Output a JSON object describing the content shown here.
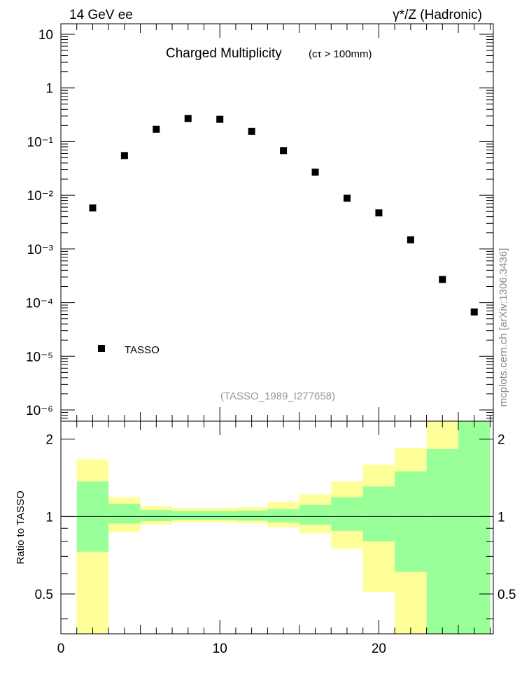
{
  "header": {
    "left": "14 GeV ee",
    "right": "γ*/Z (Hadronic)"
  },
  "side_label": "mcplots.cern.ch [arXiv:1306.3436]",
  "chart_data": [
    {
      "type": "scatter",
      "title": "Charged Multiplicity",
      "subtitle": "(cτ > 100mm)",
      "watermark": "(TASSO_1989_I277658)",
      "yscale": "log",
      "ylim": [
        5e-07,
        20
      ],
      "xlim": [
        0,
        27.2
      ],
      "y_tick_labels": [
        "10",
        "1",
        "10⁻¹",
        "10⁻²",
        "10⁻³",
        "10⁻⁴",
        "10⁻⁵",
        "10⁻⁶"
      ],
      "legend": {
        "position": "bottom-left",
        "entries": [
          "TASSO"
        ]
      },
      "series": [
        {
          "name": "TASSO",
          "marker": "square",
          "color": "#000000",
          "x": [
            2,
            4,
            6,
            8,
            10,
            12,
            14,
            16,
            18,
            20,
            22,
            24,
            26
          ],
          "y": [
            0.0058,
            0.055,
            0.17,
            0.27,
            0.26,
            0.155,
            0.068,
            0.027,
            0.0088,
            0.0047,
            0.00148,
            0.00027,
            6.7e-05
          ]
        }
      ]
    },
    {
      "type": "area",
      "ylabel": "Ratio to TASSO",
      "ylim": [
        0.35,
        2.35
      ],
      "xlim": [
        0,
        27.2
      ],
      "x_ticks": [
        0,
        10,
        20
      ],
      "y_ticks": [
        0.5,
        1,
        2
      ],
      "reference_line": 1,
      "bands": [
        {
          "color": "#ffff99",
          "bins": [
            {
              "lo": 1,
              "hi": 3,
              "low": 0.33,
              "high": 1.67
            },
            {
              "lo": 3,
              "hi": 5,
              "low": 0.87,
              "high": 1.19
            },
            {
              "lo": 5,
              "hi": 7,
              "low": 0.93,
              "high": 1.1
            },
            {
              "lo": 7,
              "hi": 9,
              "low": 0.95,
              "high": 1.08
            },
            {
              "lo": 9,
              "hi": 11,
              "low": 0.95,
              "high": 1.08
            },
            {
              "lo": 11,
              "hi": 13,
              "low": 0.94,
              "high": 1.09
            },
            {
              "lo": 13,
              "hi": 15,
              "low": 0.91,
              "high": 1.14
            },
            {
              "lo": 15,
              "hi": 17,
              "low": 0.86,
              "high": 1.22
            },
            {
              "lo": 17,
              "hi": 19,
              "low": 0.75,
              "high": 1.37
            },
            {
              "lo": 19,
              "hi": 21,
              "low": 0.51,
              "high": 1.59
            },
            {
              "lo": 21,
              "hi": 23,
              "low": 0.33,
              "high": 1.85
            },
            {
              "lo": 23,
              "hi": 25,
              "low": 0.33,
              "high": 2.35
            },
            {
              "lo": 25,
              "hi": 27,
              "low": 0.33,
              "high": 2.35
            }
          ]
        },
        {
          "color": "#99ff99",
          "bins": [
            {
              "lo": 1,
              "hi": 3,
              "low": 0.73,
              "high": 1.37
            },
            {
              "lo": 3,
              "hi": 5,
              "low": 0.94,
              "high": 1.12
            },
            {
              "lo": 5,
              "hi": 7,
              "low": 0.96,
              "high": 1.06
            },
            {
              "lo": 7,
              "hi": 9,
              "low": 0.97,
              "high": 1.05
            },
            {
              "lo": 9,
              "hi": 11,
              "low": 0.97,
              "high": 1.05
            },
            {
              "lo": 11,
              "hi": 13,
              "low": 0.965,
              "high": 1.055
            },
            {
              "lo": 13,
              "hi": 15,
              "low": 0.95,
              "high": 1.07
            },
            {
              "lo": 15,
              "hi": 17,
              "low": 0.93,
              "high": 1.11
            },
            {
              "lo": 17,
              "hi": 19,
              "low": 0.88,
              "high": 1.19
            },
            {
              "lo": 19,
              "hi": 21,
              "low": 0.8,
              "high": 1.31
            },
            {
              "lo": 21,
              "hi": 23,
              "low": 0.61,
              "high": 1.5
            },
            {
              "lo": 23,
              "hi": 25,
              "low": 0.33,
              "high": 1.83
            },
            {
              "lo": 25,
              "hi": 27,
              "low": 0.33,
              "high": 2.35
            }
          ]
        }
      ]
    }
  ]
}
